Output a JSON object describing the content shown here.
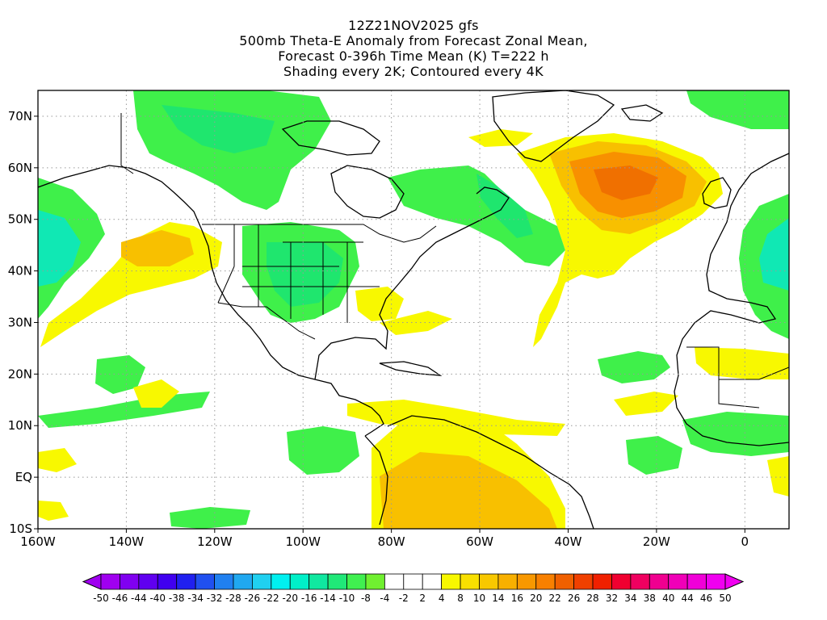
{
  "title": {
    "lines": [
      "12Z21NOV2025 gfs",
      "500mb Theta-E Anomaly from Forecast Zonal Mean,",
      "Forecast 0-396h Time Mean (K) T=222 h",
      "Shading every 2K; Contoured every 4K"
    ]
  },
  "map": {
    "lon_range": [
      -160,
      10
    ],
    "lat_range": [
      -10,
      75
    ],
    "lon_ticks": [
      {
        "v": -160,
        "label": "160W"
      },
      {
        "v": -140,
        "label": "140W"
      },
      {
        "v": -120,
        "label": "120W"
      },
      {
        "v": -100,
        "label": "100W"
      },
      {
        "v": -80,
        "label": "80W"
      },
      {
        "v": -60,
        "label": "60W"
      },
      {
        "v": -40,
        "label": "40W"
      },
      {
        "v": -20,
        "label": "20W"
      },
      {
        "v": 0,
        "label": "0"
      }
    ],
    "lat_ticks": [
      {
        "v": 70,
        "label": "70N"
      },
      {
        "v": 60,
        "label": "60N"
      },
      {
        "v": 50,
        "label": "50N"
      },
      {
        "v": 40,
        "label": "40N"
      },
      {
        "v": 30,
        "label": "30N"
      },
      {
        "v": 20,
        "label": "20N"
      },
      {
        "v": 10,
        "label": "10N"
      },
      {
        "v": 0,
        "label": "EQ"
      },
      {
        "v": -10,
        "label": "10S"
      }
    ],
    "grid": true,
    "colors": {
      "green_dark": "#1fe66e",
      "green": "#3ff04a",
      "green_light": "#7cf03c",
      "aqua": "#10e8b4",
      "yellow": "#f8f800",
      "yellow_orange": "#f8d800",
      "orange_light": "#f8b800",
      "orange": "#f89000",
      "orange_dark": "#f07000"
    }
  },
  "colorbar": {
    "labels": [
      "-50",
      "-46",
      "-44",
      "-40",
      "-38",
      "-34",
      "-32",
      "-28",
      "-26",
      "-22",
      "-20",
      "-16",
      "-14",
      "-10",
      "-8",
      "-4",
      "-2",
      "2",
      "4",
      "8",
      "10",
      "14",
      "16",
      "20",
      "22",
      "26",
      "28",
      "32",
      "34",
      "38",
      "40",
      "44",
      "46",
      "50"
    ],
    "colors": [
      "#a000f0",
      "#8000f0",
      "#6000f0",
      "#4000f0",
      "#2020f0",
      "#2050f0",
      "#2080f0",
      "#20a8f0",
      "#20d0f0",
      "#00f0f0",
      "#00f0c8",
      "#10e8a0",
      "#20e878",
      "#40f050",
      "#70f030",
      "#ffffff",
      "#ffffff",
      "#ffffff",
      "#f8f800",
      "#f8e000",
      "#f8c800",
      "#f8b000",
      "#f89800",
      "#f88000",
      "#f06000",
      "#f04000",
      "#f02000",
      "#f00030",
      "#f00060",
      "#f00090",
      "#f000b8",
      "#f000d8",
      "#f000f0"
    ]
  }
}
